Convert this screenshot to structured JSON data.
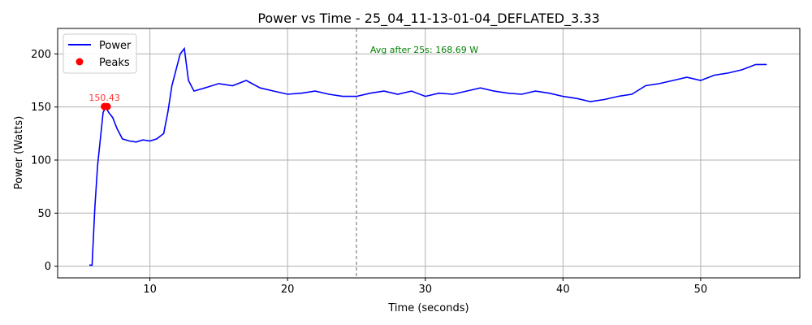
{
  "chart_data": {
    "type": "line",
    "title": "Power vs Time - 25_04_11-13-01-04_DEFLATED_3.33",
    "xlabel": "Time (seconds)",
    "ylabel": "Power (Watts)",
    "xlim": [
      3.3,
      57.2
    ],
    "ylim": [
      -11,
      224
    ],
    "xticks": [
      10,
      20,
      30,
      40,
      50
    ],
    "yticks": [
      0,
      50,
      100,
      150,
      200
    ],
    "grid": true,
    "legend": {
      "position": "top-left",
      "entries": [
        {
          "label": "Power",
          "kind": "line"
        },
        {
          "label": "Peaks",
          "kind": "marker"
        }
      ]
    },
    "series": [
      {
        "name": "Power",
        "color": "#0000ff",
        "x": [
          5.6,
          5.8,
          6.0,
          6.2,
          6.4,
          6.6,
          6.8,
          7.0,
          7.3,
          7.6,
          8.0,
          8.5,
          9.0,
          9.5,
          10.0,
          10.5,
          11.0,
          11.3,
          11.6,
          11.9,
          12.2,
          12.5,
          12.8,
          13.2,
          14,
          15,
          16,
          17,
          18,
          19,
          20,
          21,
          22,
          23,
          24,
          25,
          26,
          27,
          28,
          29,
          30,
          31,
          32,
          33,
          34,
          35,
          36,
          37,
          38,
          39,
          40,
          41,
          42,
          43,
          44,
          45,
          46,
          47,
          48,
          49,
          50,
          51,
          52,
          53,
          54,
          54.8
        ],
        "y": [
          1,
          1,
          55,
          95,
          120,
          145,
          150,
          145,
          140,
          130,
          120,
          118,
          117,
          119,
          118,
          120,
          125,
          145,
          170,
          185,
          200,
          205,
          175,
          165,
          168,
          172,
          170,
          175,
          168,
          165,
          162,
          163,
          165,
          162,
          160,
          160,
          163,
          165,
          162,
          165,
          160,
          163,
          162,
          165,
          168,
          165,
          163,
          162,
          165,
          163,
          160,
          158,
          155,
          157,
          160,
          162,
          170,
          172,
          175,
          178,
          175,
          180,
          182,
          185,
          190,
          190
        ]
      }
    ],
    "peaks": {
      "name": "Peaks",
      "color": "#ff0000",
      "points": [
        {
          "x": 6.7,
          "y": 150.43
        },
        {
          "x": 6.9,
          "y": 150.43
        }
      ],
      "label": "150.43"
    },
    "vline": {
      "x": 25,
      "style": "dashed",
      "color": "#808080"
    },
    "annotation": {
      "text": "Avg after 25s: 168.69 W",
      "x": 26,
      "y": 204,
      "color": "#008000"
    }
  }
}
